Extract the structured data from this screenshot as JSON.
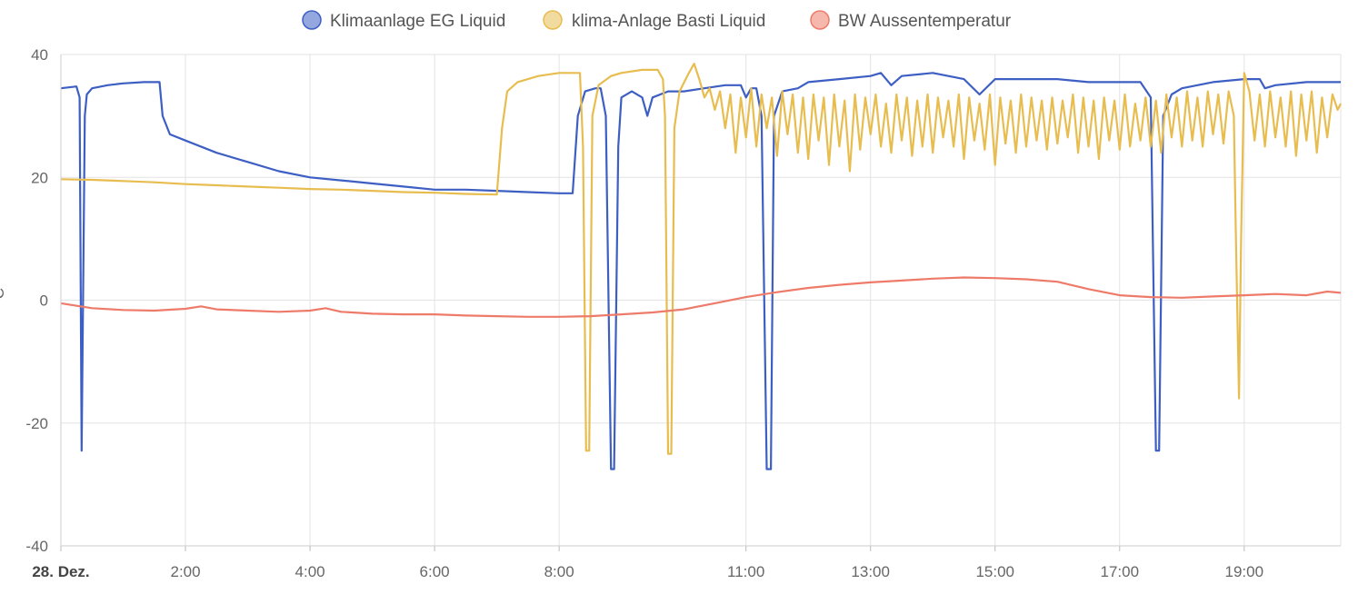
{
  "chart_data": {
    "type": "line",
    "ylabel": "°C",
    "ylim": [
      -40,
      40
    ],
    "xlim": [
      "00:00",
      "20:33"
    ],
    "yticks": [
      40,
      20,
      0,
      -20,
      -40
    ],
    "xticks": [
      {
        "label": "28. Dez.",
        "t": "00:00",
        "bold": true
      },
      {
        "label": "2:00",
        "t": "02:00"
      },
      {
        "label": "4:00",
        "t": "04:00"
      },
      {
        "label": "6:00",
        "t": "06:00"
      },
      {
        "label": "8:00",
        "t": "08:00"
      },
      {
        "label": "11:00",
        "t": "11:00"
      },
      {
        "label": "13:00",
        "t": "13:00"
      },
      {
        "label": "15:00",
        "t": "15:00"
      },
      {
        "label": "17:00",
        "t": "17:00"
      },
      {
        "label": "19:00",
        "t": "19:00"
      }
    ],
    "grid": true,
    "legend_position": "top",
    "series": [
      {
        "name": "Klimaanlage EG Liquid",
        "color": "#3d5fc4",
        "points": [
          [
            "00:00",
            34.5
          ],
          [
            "00:15",
            34.8
          ],
          [
            "00:18",
            33
          ],
          [
            "00:20",
            -24.5
          ],
          [
            "00:23",
            30
          ],
          [
            "00:25",
            33.5
          ],
          [
            "00:30",
            34.5
          ],
          [
            "00:45",
            35
          ],
          [
            "01:00",
            35.3
          ],
          [
            "01:20",
            35.5
          ],
          [
            "01:35",
            35.5
          ],
          [
            "01:38",
            30
          ],
          [
            "01:45",
            27
          ],
          [
            "02:00",
            26
          ],
          [
            "02:30",
            24
          ],
          [
            "03:00",
            22.5
          ],
          [
            "03:30",
            21
          ],
          [
            "04:00",
            20
          ],
          [
            "04:30",
            19.5
          ],
          [
            "05:00",
            19
          ],
          [
            "05:30",
            18.5
          ],
          [
            "06:00",
            18
          ],
          [
            "06:30",
            18
          ],
          [
            "07:00",
            17.8
          ],
          [
            "07:30",
            17.6
          ],
          [
            "08:00",
            17.4
          ],
          [
            "08:13",
            17.4
          ],
          [
            "08:18",
            30
          ],
          [
            "08:25",
            34
          ],
          [
            "08:35",
            34.5
          ],
          [
            "08:40",
            34.5
          ],
          [
            "08:45",
            30
          ],
          [
            "08:50",
            -27.5
          ],
          [
            "08:53",
            -27.5
          ],
          [
            "08:57",
            25
          ],
          [
            "09:00",
            33
          ],
          [
            "09:10",
            34
          ],
          [
            "09:20",
            33
          ],
          [
            "09:25",
            30
          ],
          [
            "09:30",
            33
          ],
          [
            "09:45",
            34
          ],
          [
            "10:00",
            34
          ],
          [
            "10:20",
            34.5
          ],
          [
            "10:40",
            35
          ],
          [
            "10:55",
            35
          ],
          [
            "11:00",
            33
          ],
          [
            "11:05",
            34.5
          ],
          [
            "11:10",
            34.5
          ],
          [
            "11:15",
            30
          ],
          [
            "11:20",
            -27.5
          ],
          [
            "11:24",
            -27.5
          ],
          [
            "11:27",
            30
          ],
          [
            "11:35",
            34
          ],
          [
            "11:50",
            34.5
          ],
          [
            "12:00",
            35.5
          ],
          [
            "12:30",
            36
          ],
          [
            "13:00",
            36.5
          ],
          [
            "13:10",
            37
          ],
          [
            "13:20",
            35
          ],
          [
            "13:30",
            36.5
          ],
          [
            "14:00",
            37
          ],
          [
            "14:30",
            36
          ],
          [
            "14:45",
            33.5
          ],
          [
            "15:00",
            36
          ],
          [
            "15:30",
            36
          ],
          [
            "16:00",
            36
          ],
          [
            "16:30",
            35.5
          ],
          [
            "17:00",
            35.5
          ],
          [
            "17:20",
            35.5
          ],
          [
            "17:30",
            33
          ],
          [
            "17:35",
            -24.5
          ],
          [
            "17:38",
            -24.5
          ],
          [
            "17:42",
            30
          ],
          [
            "17:50",
            33.5
          ],
          [
            "18:00",
            34.5
          ],
          [
            "18:30",
            35.5
          ],
          [
            "19:00",
            36
          ],
          [
            "19:15",
            36
          ],
          [
            "19:20",
            34.5
          ],
          [
            "19:30",
            35
          ],
          [
            "20:00",
            35.5
          ],
          [
            "20:33",
            35.5
          ]
        ]
      },
      {
        "name": "klima-Anlage Basti Liquid",
        "color": "#e8bd50",
        "points": [
          [
            "00:00",
            19.7
          ],
          [
            "00:30",
            19.6
          ],
          [
            "01:00",
            19.4
          ],
          [
            "01:30",
            19.2
          ],
          [
            "02:00",
            18.9
          ],
          [
            "02:30",
            18.7
          ],
          [
            "03:00",
            18.5
          ],
          [
            "03:30",
            18.3
          ],
          [
            "04:00",
            18.1
          ],
          [
            "04:30",
            18
          ],
          [
            "05:00",
            17.8
          ],
          [
            "05:30",
            17.6
          ],
          [
            "06:00",
            17.5
          ],
          [
            "06:30",
            17.3
          ],
          [
            "07:00",
            17.2
          ],
          [
            "07:05",
            28
          ],
          [
            "07:10",
            34
          ],
          [
            "07:20",
            35.5
          ],
          [
            "07:40",
            36.5
          ],
          [
            "08:00",
            37
          ],
          [
            "08:20",
            37
          ],
          [
            "08:23",
            25
          ],
          [
            "08:26",
            -24.5
          ],
          [
            "08:29",
            -24.5
          ],
          [
            "08:32",
            30
          ],
          [
            "08:38",
            35
          ],
          [
            "08:50",
            36.5
          ],
          [
            "09:00",
            37
          ],
          [
            "09:20",
            37.5
          ],
          [
            "09:35",
            37.5
          ],
          [
            "09:40",
            36
          ],
          [
            "09:42",
            30
          ],
          [
            "09:45",
            -25
          ],
          [
            "09:48",
            -25
          ],
          [
            "09:51",
            28
          ],
          [
            "09:56",
            34
          ],
          [
            "10:05",
            37
          ],
          [
            "10:10",
            38.5
          ],
          [
            "10:15",
            36
          ],
          [
            "10:20",
            33
          ],
          [
            "10:25",
            34.5
          ],
          [
            "10:30",
            31
          ],
          [
            "10:35",
            34
          ],
          [
            "10:40",
            28
          ],
          [
            "10:45",
            33.5
          ],
          [
            "10:50",
            24
          ],
          [
            "10:55",
            33
          ],
          [
            "11:00",
            26.5
          ],
          [
            "11:05",
            34.5
          ],
          [
            "11:10",
            25
          ],
          [
            "11:15",
            33.5
          ],
          [
            "11:20",
            28
          ],
          [
            "11:25",
            33
          ],
          [
            "11:30",
            23.5
          ],
          [
            "11:35",
            34
          ],
          [
            "11:40",
            27
          ],
          [
            "11:45",
            33.5
          ],
          [
            "11:50",
            24
          ],
          [
            "11:55",
            33
          ],
          [
            "12:00",
            23
          ],
          [
            "12:05",
            33.5
          ],
          [
            "12:10",
            26
          ],
          [
            "12:15",
            33
          ],
          [
            "12:20",
            22
          ],
          [
            "12:25",
            33.5
          ],
          [
            "12:30",
            25
          ],
          [
            "12:35",
            32.5
          ],
          [
            "12:40",
            21
          ],
          [
            "12:45",
            33.5
          ],
          [
            "12:50",
            24.5
          ],
          [
            "12:55",
            33
          ],
          [
            "13:00",
            27
          ],
          [
            "13:05",
            33.5
          ],
          [
            "13:10",
            25
          ],
          [
            "13:15",
            32
          ],
          [
            "13:20",
            24
          ],
          [
            "13:25",
            33.5
          ],
          [
            "13:30",
            26
          ],
          [
            "13:35",
            33
          ],
          [
            "13:40",
            23.5
          ],
          [
            "13:45",
            32.5
          ],
          [
            "13:50",
            25
          ],
          [
            "13:55",
            33.5
          ],
          [
            "14:00",
            24
          ],
          [
            "14:05",
            33
          ],
          [
            "14:10",
            26.5
          ],
          [
            "14:15",
            32.5
          ],
          [
            "14:20",
            25
          ],
          [
            "14:25",
            33.5
          ],
          [
            "14:30",
            23
          ],
          [
            "14:35",
            33
          ],
          [
            "14:40",
            26
          ],
          [
            "14:45",
            32
          ],
          [
            "14:50",
            24.5
          ],
          [
            "14:55",
            33.5
          ],
          [
            "15:00",
            22
          ],
          [
            "15:05",
            33
          ],
          [
            "15:10",
            25.5
          ],
          [
            "15:15",
            32.5
          ],
          [
            "15:20",
            24
          ],
          [
            "15:25",
            33.5
          ],
          [
            "15:30",
            25
          ],
          [
            "15:35",
            33
          ],
          [
            "15:40",
            26
          ],
          [
            "15:45",
            32.5
          ],
          [
            "15:50",
            24.5
          ],
          [
            "15:55",
            33
          ],
          [
            "16:00",
            25.5
          ],
          [
            "16:05",
            32.5
          ],
          [
            "16:10",
            26.5
          ],
          [
            "16:15",
            33.5
          ],
          [
            "16:20",
            24
          ],
          [
            "16:25",
            33
          ],
          [
            "16:30",
            25
          ],
          [
            "16:35",
            32.5
          ],
          [
            "16:40",
            23
          ],
          [
            "16:45",
            33
          ],
          [
            "16:50",
            26
          ],
          [
            "16:55",
            32.5
          ],
          [
            "17:00",
            24.5
          ],
          [
            "17:05",
            33.5
          ],
          [
            "17:10",
            25
          ],
          [
            "17:15",
            32
          ],
          [
            "17:20",
            26
          ],
          [
            "17:25",
            33
          ],
          [
            "17:30",
            25
          ],
          [
            "17:35",
            32.5
          ],
          [
            "17:40",
            24
          ],
          [
            "17:45",
            33.5
          ],
          [
            "17:50",
            26.5
          ],
          [
            "17:55",
            33
          ],
          [
            "18:00",
            25
          ],
          [
            "18:05",
            34
          ],
          [
            "18:10",
            26
          ],
          [
            "18:15",
            33
          ],
          [
            "18:20",
            25
          ],
          [
            "18:25",
            34
          ],
          [
            "18:30",
            27
          ],
          [
            "18:35",
            33.5
          ],
          [
            "18:40",
            25.5
          ],
          [
            "18:45",
            34
          ],
          [
            "18:50",
            30
          ],
          [
            "18:52",
            10
          ],
          [
            "18:55",
            -16
          ],
          [
            "18:57",
            10
          ],
          [
            "19:00",
            37
          ],
          [
            "19:05",
            34
          ],
          [
            "19:10",
            26
          ],
          [
            "19:15",
            33.5
          ],
          [
            "19:20",
            25
          ],
          [
            "19:25",
            34
          ],
          [
            "19:30",
            26.5
          ],
          [
            "19:35",
            33
          ],
          [
            "19:40",
            25
          ],
          [
            "19:45",
            34
          ],
          [
            "19:50",
            23.5
          ],
          [
            "19:55",
            33.5
          ],
          [
            "20:00",
            26
          ],
          [
            "20:05",
            34
          ],
          [
            "20:10",
            24
          ],
          [
            "20:15",
            33
          ],
          [
            "20:20",
            26.5
          ],
          [
            "20:25",
            33.5
          ],
          [
            "20:30",
            31
          ],
          [
            "20:33",
            32
          ]
        ]
      },
      {
        "name": "BW Aussentemperatur",
        "color": "#ee7b6a",
        "points": [
          [
            "00:00",
            -0.5
          ],
          [
            "00:30",
            -1.3
          ],
          [
            "01:00",
            -1.6
          ],
          [
            "01:30",
            -1.7
          ],
          [
            "02:00",
            -1.4
          ],
          [
            "02:15",
            -1.0
          ],
          [
            "02:30",
            -1.5
          ],
          [
            "03:00",
            -1.7
          ],
          [
            "03:30",
            -1.9
          ],
          [
            "04:00",
            -1.7
          ],
          [
            "04:15",
            -1.3
          ],
          [
            "04:30",
            -1.9
          ],
          [
            "05:00",
            -2.2
          ],
          [
            "05:30",
            -2.3
          ],
          [
            "06:00",
            -2.3
          ],
          [
            "06:30",
            -2.5
          ],
          [
            "07:00",
            -2.6
          ],
          [
            "07:30",
            -2.7
          ],
          [
            "08:00",
            -2.7
          ],
          [
            "08:30",
            -2.6
          ],
          [
            "09:00",
            -2.3
          ],
          [
            "09:30",
            -2.0
          ],
          [
            "10:00",
            -1.5
          ],
          [
            "10:30",
            -0.5
          ],
          [
            "11:00",
            0.5
          ],
          [
            "11:30",
            1.3
          ],
          [
            "12:00",
            2.0
          ],
          [
            "12:30",
            2.5
          ],
          [
            "13:00",
            2.9
          ],
          [
            "13:30",
            3.2
          ],
          [
            "14:00",
            3.5
          ],
          [
            "14:30",
            3.7
          ],
          [
            "15:00",
            3.6
          ],
          [
            "15:30",
            3.4
          ],
          [
            "16:00",
            3.0
          ],
          [
            "16:30",
            1.8
          ],
          [
            "17:00",
            0.8
          ],
          [
            "17:30",
            0.5
          ],
          [
            "18:00",
            0.4
          ],
          [
            "18:30",
            0.6
          ],
          [
            "19:00",
            0.8
          ],
          [
            "19:30",
            1.0
          ],
          [
            "20:00",
            0.8
          ],
          [
            "20:20",
            1.4
          ],
          [
            "20:33",
            1.2
          ]
        ]
      }
    ]
  }
}
